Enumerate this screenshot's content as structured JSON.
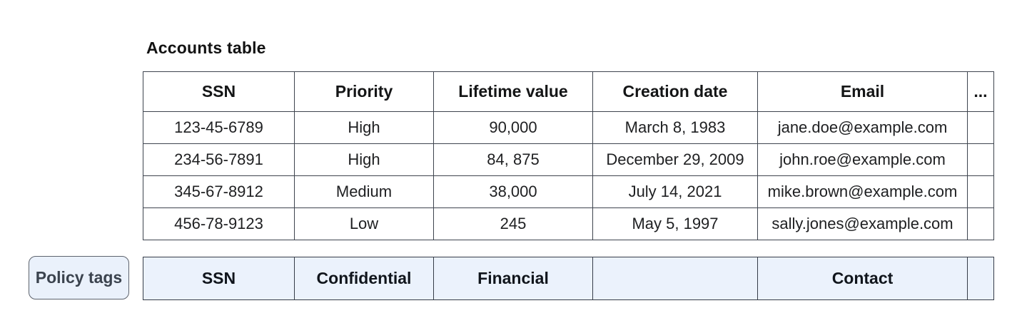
{
  "title": "Accounts table",
  "colors": {
    "table_border": "#3e444e",
    "policy_border": "#353c48",
    "policy_bg": "#ebf2fc",
    "button_bg": "#eaf1fb",
    "button_border": "#5d636d",
    "button_text": "#3b434e",
    "text": "#1e1f21",
    "background": "#ffffff"
  },
  "table": {
    "columns": [
      "SSN",
      "Priority",
      "Lifetime value",
      "Creation date",
      "Email",
      "..."
    ],
    "rows": [
      [
        "123-45-6789",
        "High",
        "90,000",
        "March 8, 1983",
        "jane.doe@example.com",
        ""
      ],
      [
        "234-56-7891",
        "High",
        "84, 875",
        "December 29, 2009",
        "john.roe@example.com",
        ""
      ],
      [
        "345-67-8912",
        "Medium",
        "38,000",
        "July 14, 2021",
        "mike.brown@example.com",
        ""
      ],
      [
        "456-78-9123",
        "Low",
        "245",
        "May 5, 1997",
        "sally.jones@example.com",
        ""
      ]
    ]
  },
  "policy": {
    "button_label": "Policy tags",
    "tags": [
      "SSN",
      "Confidential",
      "Financial",
      "",
      "Contact",
      ""
    ]
  }
}
